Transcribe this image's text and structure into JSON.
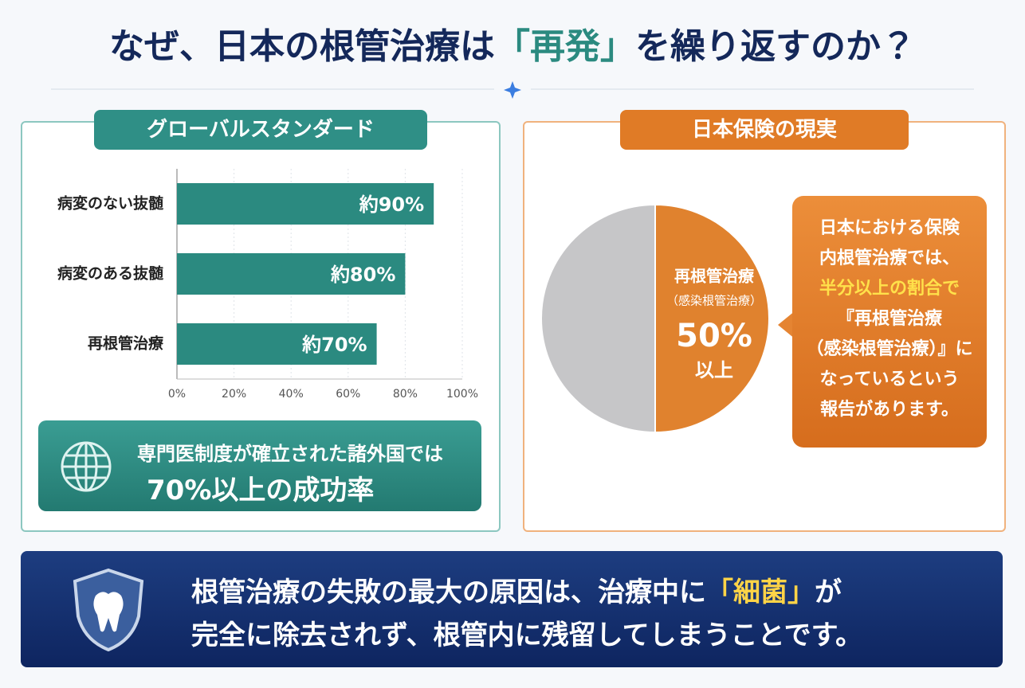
{
  "title": {
    "before": "なぜ、日本の根管治療は",
    "highlight": "「再発」",
    "after": "を繰り返すのか？"
  },
  "chart_data": [
    {
      "type": "bar",
      "orientation": "horizontal",
      "title": "グローバルスタンダード",
      "categories": [
        "病変のない抜髄",
        "病変のある抜髄",
        "再根管治療"
      ],
      "values": [
        90,
        80,
        70
      ],
      "value_labels": [
        "約90%",
        "約80%",
        "約70%"
      ],
      "color": "#2b8a80",
      "xlim": [
        0,
        100
      ],
      "xticks": [
        {
          "value": 0,
          "label": "0%"
        },
        {
          "value": 20,
          "label": "20%"
        },
        {
          "value": 40,
          "label": "40%"
        },
        {
          "value": 60,
          "label": "60%"
        },
        {
          "value": 80,
          "label": "80%"
        },
        {
          "value": 100,
          "label": "100%"
        }
      ],
      "grid": true
    },
    {
      "type": "pie",
      "title": "日本保険の現実",
      "categories": [
        "再根管治療",
        null
      ],
      "category_note": "（感染根管治療）",
      "values": [
        50,
        50
      ],
      "value_labels": [
        "50%",
        null
      ],
      "annotation": "以上",
      "colors": [
        "#e0822e",
        "#c6c6c8"
      ]
    }
  ],
  "global_note": {
    "line1": "専門医制度が確立された諸外国では",
    "line2": "70%以上の成功率"
  },
  "japan_note": {
    "lines": [
      "日本における保険",
      "内根管治療では、"
    ],
    "highlight": "半分以上の割合で",
    "lines2": [
      "『再根管治療",
      "（感染根管治療）』に",
      "なっているという",
      "報告があります。"
    ]
  },
  "banner": {
    "line1_before": "根管治療の失敗の最大の原因は、治療中に",
    "line1_highlight": "「細菌」",
    "line1_after": "が",
    "line2": "完全に除去されず、根管内に残留してしまうことです。"
  }
}
